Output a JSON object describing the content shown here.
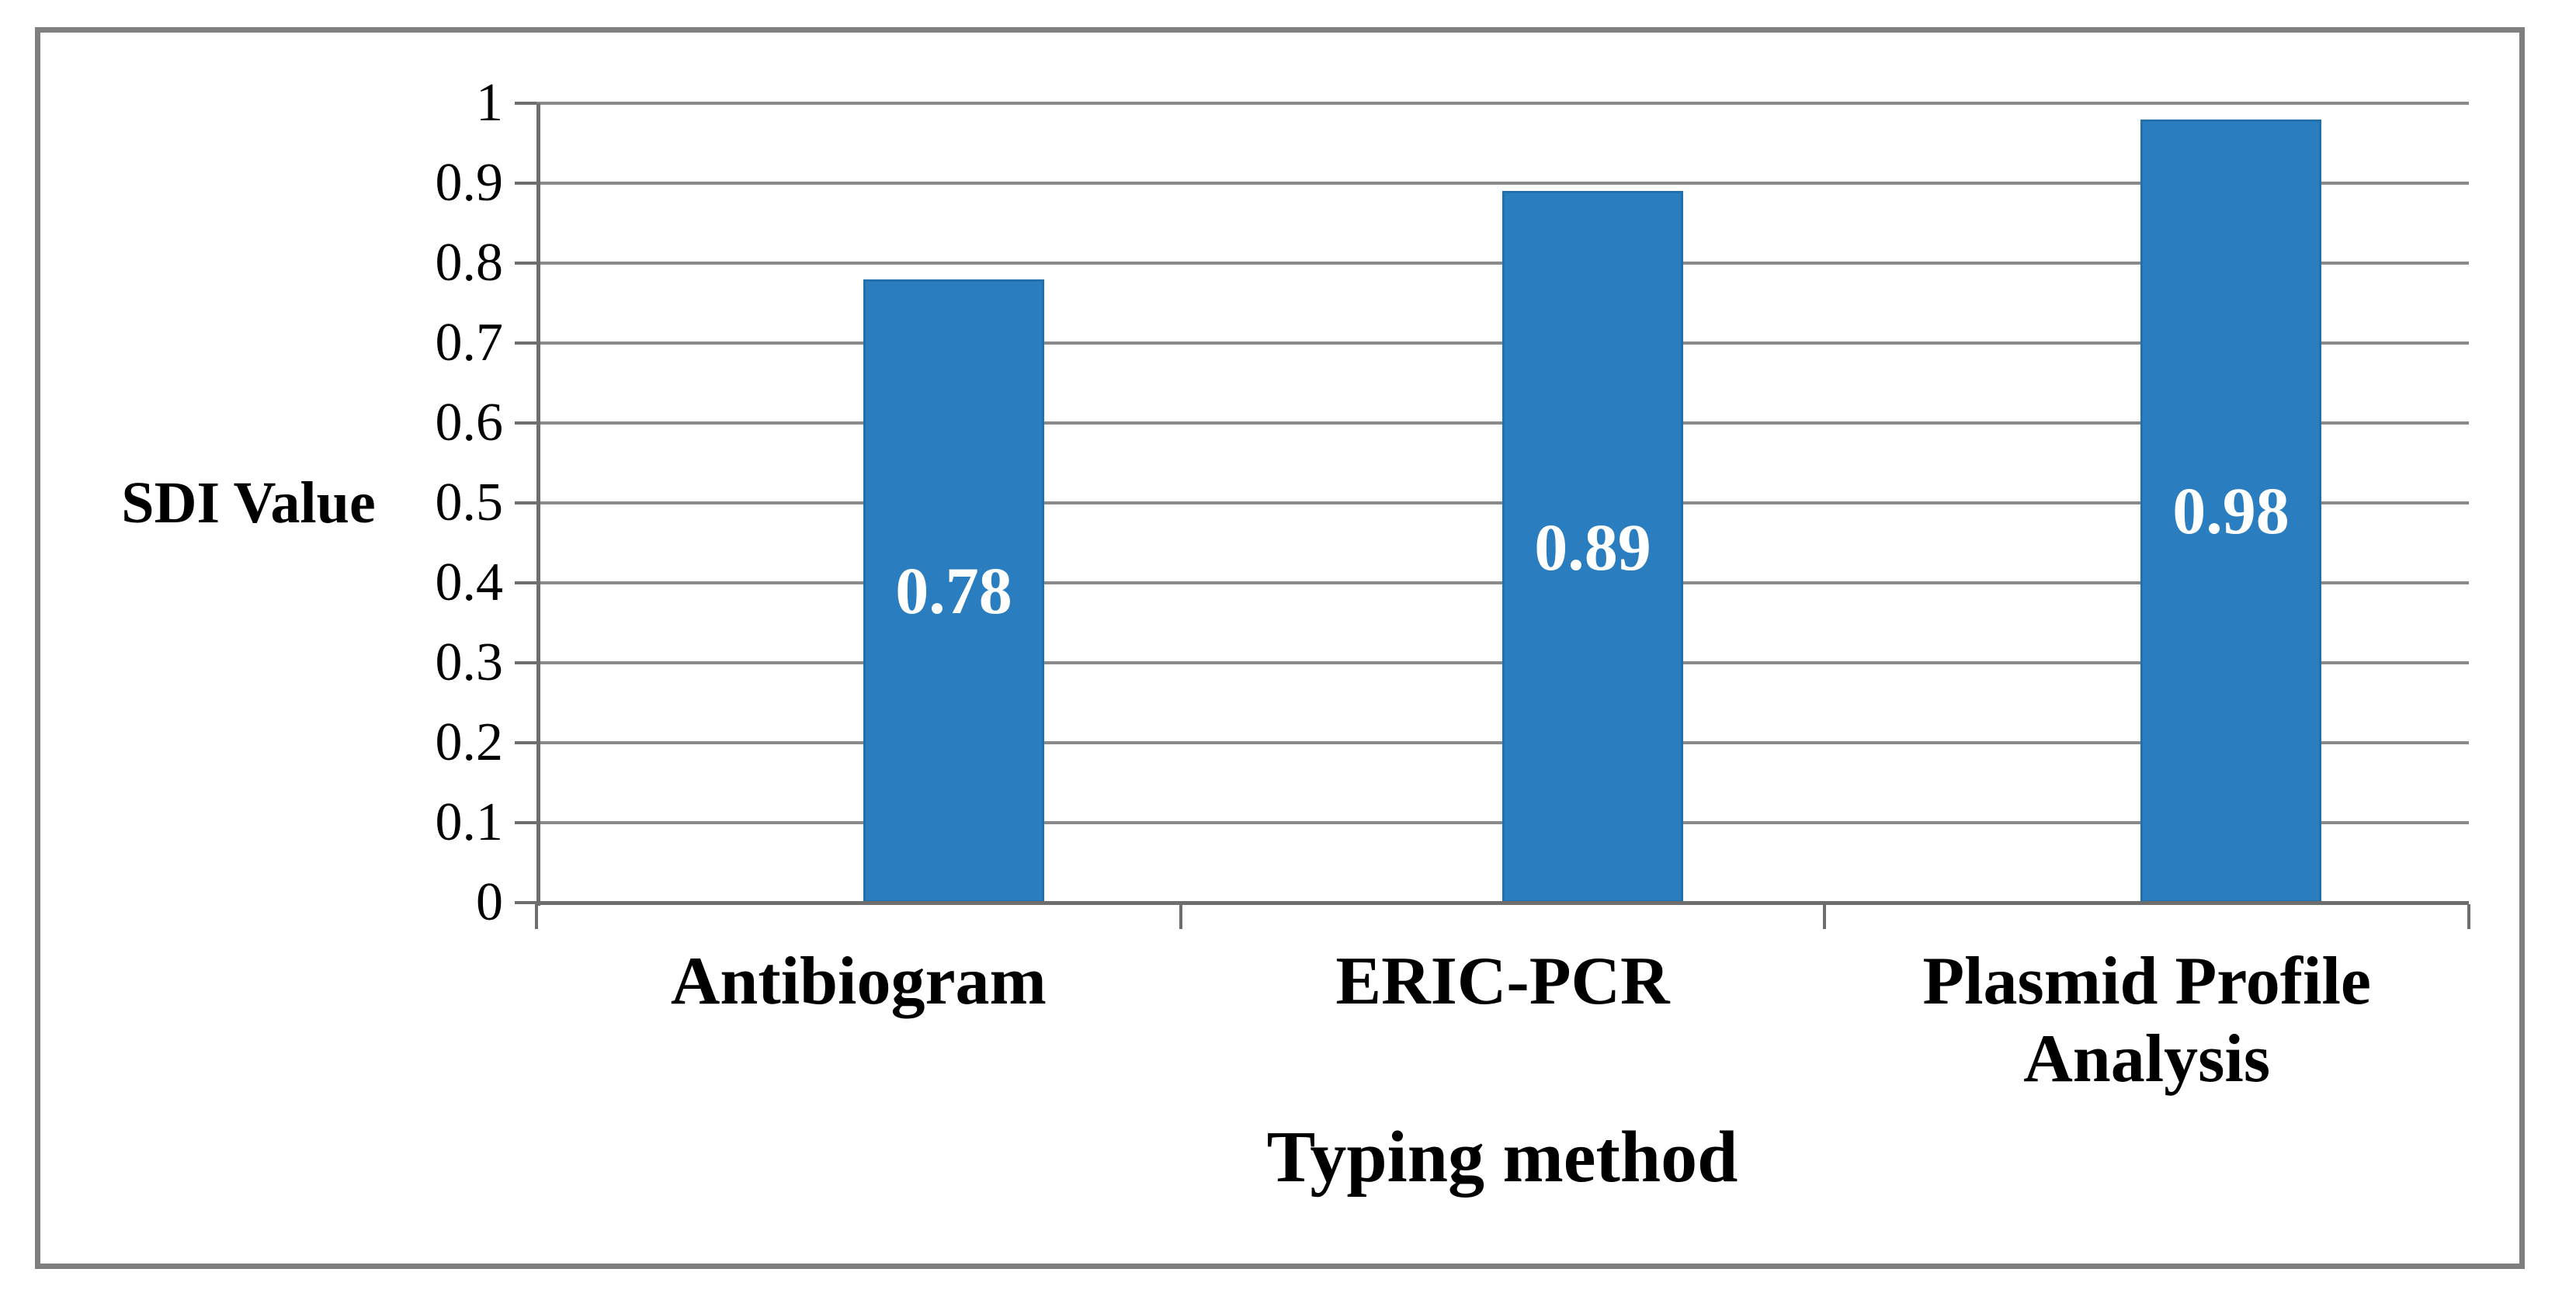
{
  "chart_data": {
    "type": "bar",
    "title": "",
    "categories": [
      "Antibiogram",
      "ERIC-PCR",
      "Plasmid Profile Analysis"
    ],
    "values": [
      0.78,
      0.89,
      0.98
    ],
    "bar_labels": [
      "0.78",
      "0.89",
      "0.98"
    ],
    "xlabel": "Typing method",
    "ylabel": "SDI Value",
    "ylim": [
      0,
      1
    ],
    "ytick_step": 0.1,
    "ytick_labels": [
      "0",
      "0.1",
      "0.2",
      "0.3",
      "0.4",
      "0.5",
      "0.6",
      "0.7",
      "0.8",
      "0.9",
      "1"
    ],
    "grid": "horizontal",
    "legend": "none",
    "bar_color": "#2a7dbe",
    "bar_edge_color": "#2371ac",
    "bar_label_color": "#ffffff",
    "grid_color": "#8a8a8a",
    "axis_color": "#6e6e6e",
    "frame_border_color": "#7f7f7f",
    "text_color": "#000000"
  }
}
